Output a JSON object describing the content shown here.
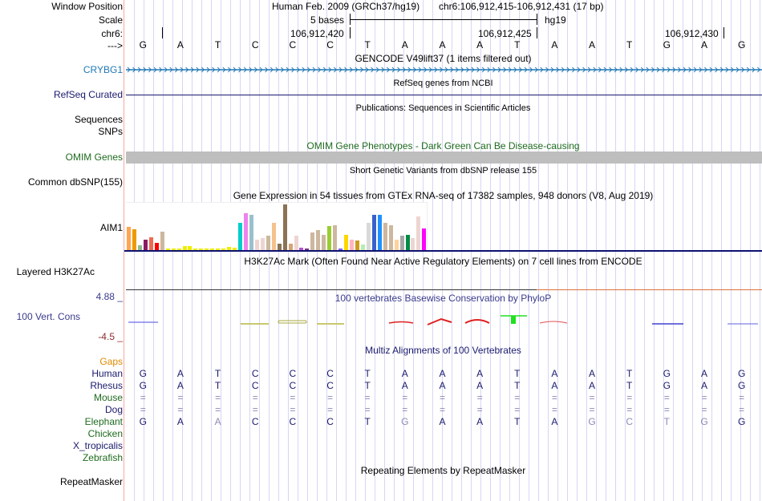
{
  "header": {
    "assembly_title": "Human Feb. 2009 (GRCh37/hg19)",
    "position": "chr6:106,912,415-106,912,431 (17 bp)",
    "scale_text": "5 bases",
    "scale_assembly": "hg19",
    "coord_ticks": [
      "106,912,420",
      "106,912,425",
      "106,912,430"
    ]
  },
  "labels": {
    "window_position": "Window Position",
    "scale": "Scale",
    "chrom": "chr6:",
    "strand": "--->",
    "crybg1": "CRYBG1",
    "refseq": "RefSeq Curated",
    "sequences": "Sequences",
    "snps": "SNPs",
    "omim": "OMIM Genes",
    "dbsnp": "Common dbSNP(155)",
    "aim1": "AIM1",
    "h3k27ac": "Layered H3K27Ac",
    "cons_max": "4.88 _",
    "cons": "100 Vert. Cons",
    "cons_min": "-4.5 _",
    "gaps": "Gaps",
    "repeatmasker": "RepeatMasker"
  },
  "track_titles": {
    "gencode": "GENCODE V49lift37 (1 items filtered out)",
    "refseq": "RefSeq genes from NCBI",
    "publications": "Publications: Sequences in Scientific Articles",
    "omim": "OMIM Gene Phenotypes - Dark Green Can Be Disease-causing",
    "dbsnp": "Short Genetic Variants from dbSNP release 155",
    "gtex": "Gene Expression in 54 tissues from GTEx RNA-seq of 17382 samples, 948 donors (V8, Aug 2019)",
    "h3k27ac": "H3K27Ac Mark (Often Found Near Active Regulatory Elements) on 7 cell lines from ENCODE",
    "phylop": "100 vertebrates Basewise Conservation by PhyloP",
    "multiz": "Multiz Alignments of 100 Vertebrates",
    "repeatmasker": "Repeating Elements by RepeatMasker"
  },
  "sequence": [
    "G",
    "A",
    "T",
    "C",
    "C",
    "C",
    "T",
    "A",
    "A",
    "A",
    "T",
    "A",
    "A",
    "T",
    "G",
    "A",
    "G"
  ],
  "alignment": {
    "species": [
      {
        "name": "Human",
        "color": "#1a1a6e",
        "bases": [
          "G",
          "A",
          "T",
          "C",
          "C",
          "C",
          "T",
          "A",
          "A",
          "A",
          "T",
          "A",
          "A",
          "T",
          "G",
          "A",
          "G"
        ]
      },
      {
        "name": "Rhesus",
        "color": "#1a1a6e",
        "bases": [
          "G",
          "A",
          "T",
          "C",
          "C",
          "C",
          "T",
          "A",
          "A",
          "A",
          "T",
          "A",
          "A",
          "T",
          "G",
          "A",
          "G"
        ]
      },
      {
        "name": "Mouse",
        "color": "#1e6b1e",
        "bases": [
          "=",
          "=",
          "=",
          "=",
          "=",
          "=",
          "=",
          "=",
          "=",
          "=",
          "=",
          "=",
          "=",
          "=",
          "=",
          "=",
          "="
        ]
      },
      {
        "name": "Dog",
        "color": "#1a1a6e",
        "bases": [
          "=",
          "=",
          "=",
          "=",
          "=",
          "=",
          "=",
          "=",
          "=",
          "=",
          "=",
          "=",
          "=",
          "=",
          "=",
          "=",
          "="
        ]
      },
      {
        "name": "Elephant",
        "color": "#1e6b1e",
        "bases": [
          "G",
          "A",
          "A",
          "C",
          "C",
          "C",
          "T",
          "G",
          "A",
          "A",
          "T",
          "A",
          "G",
          "C",
          "T",
          "G",
          "G"
        ],
        "mismatch": [
          false,
          false,
          true,
          false,
          false,
          false,
          false,
          true,
          false,
          false,
          false,
          false,
          true,
          true,
          true,
          true,
          false
        ]
      },
      {
        "name": "Chicken",
        "color": "#1e6b1e",
        "bases": []
      },
      {
        "name": "X_tropicalis",
        "color": "#1a1a6e",
        "bases": []
      },
      {
        "name": "Zebrafish",
        "color": "#1e6b1e",
        "bases": []
      }
    ]
  },
  "gtex": {
    "tissue_values": [
      0.52,
      0.46,
      0.12,
      0.24,
      0.29,
      0.18,
      0.42,
      0.05,
      0.05,
      0.05,
      0.1,
      0.11,
      0.06,
      0.06,
      0.05,
      0.06,
      0.05,
      0.05,
      0.08,
      0.07,
      0.6,
      0.81,
      0.78,
      0.24,
      0.27,
      0.33,
      0.6,
      0.16,
      1.0,
      0.16,
      0.33,
      0.07,
      0.06,
      0.4,
      0.44,
      0.34,
      0.53,
      0.56,
      0.06,
      0.34,
      0.25,
      0.22,
      0.14,
      0.6,
      0.78,
      0.77,
      0.6,
      0.55,
      0.24,
      0.33,
      0.34,
      0.27,
      0.74,
      0.49
    ],
    "tissue_colors": [
      "#FFA54F",
      "#EE9A00",
      "#8FBC8F",
      "#8B1C62",
      "#EE6A50",
      "#FF0000",
      "#CDB79E",
      "#EEEE00",
      "#EEEE00",
      "#EEEE00",
      "#EEEE00",
      "#EEEE00",
      "#EEEE00",
      "#EEEE00",
      "#EEEE00",
      "#EEEE00",
      "#EEEE00",
      "#EEEE00",
      "#EEEE00",
      "#EEEE00",
      "#00CDCD",
      "#EE82EE",
      "#9AC0CD",
      "#EED5D2",
      "#EED5D2",
      "#CDB79E",
      "#F4C28E",
      "#8B7355",
      "#8B7355",
      "#D2A679",
      "#EED5D2",
      "#B452CD",
      "#7A378B",
      "#CDB79E",
      "#CDB79E",
      "#CDB79E",
      "#9ACD32",
      "#CDB79E",
      "#7B68EE",
      "#FFD700",
      "#FFB6C1",
      "#CD9B1D",
      "#B4EEB4",
      "#D9D9D9",
      "#3A5FCD",
      "#1E90FF",
      "#CDB79E",
      "#CDB79E",
      "#FFD39B",
      "#A6A6A6",
      "#008B45",
      "#EED5D2",
      "#EED5D2",
      "#FF00FF"
    ]
  }
}
